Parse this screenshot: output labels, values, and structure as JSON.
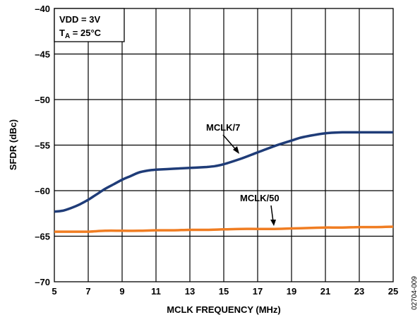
{
  "chart_data": {
    "type": "line",
    "title": "",
    "xlabel": "MCLK FREQUENCY (MHz)",
    "ylabel": "SFDR (dBc)",
    "xlim": [
      5,
      25
    ],
    "ylim": [
      -70,
      -40
    ],
    "xticks": [
      5,
      7,
      9,
      11,
      13,
      15,
      17,
      19,
      21,
      23,
      25
    ],
    "yticks": [
      -40,
      -45,
      -50,
      -55,
      -60,
      -65,
      -70
    ],
    "xtick_labels": [
      "5",
      "7",
      "9",
      "11",
      "13",
      "15",
      "17",
      "19",
      "21",
      "23",
      "25"
    ],
    "ytick_labels": [
      "–40",
      "–45",
      "–50",
      "–55",
      "–60",
      "–65",
      "–70"
    ],
    "grid": true,
    "conditions": {
      "line1": "VDD = 3V",
      "line2_prefix": "T",
      "line2_sub": "A",
      "line2_suffix": " = 25°C"
    },
    "series": [
      {
        "name": "MCLK/7",
        "color": "#1f3c78",
        "x": [
          5,
          5.5,
          6,
          6.5,
          7,
          7.5,
          8,
          8.5,
          9,
          9.5,
          10,
          10.5,
          11,
          12,
          13,
          14,
          14.5,
          15,
          16,
          17,
          18,
          19,
          19.5,
          20,
          21,
          22,
          23,
          24,
          25
        ],
        "y": [
          -62.3,
          -62.2,
          -61.9,
          -61.5,
          -61.0,
          -60.4,
          -59.8,
          -59.3,
          -58.8,
          -58.4,
          -58.0,
          -57.8,
          -57.7,
          -57.6,
          -57.5,
          -57.4,
          -57.3,
          -57.1,
          -56.5,
          -55.8,
          -55.1,
          -54.5,
          -54.2,
          -54.0,
          -53.7,
          -53.6,
          -53.6,
          -53.6,
          -53.6
        ],
        "label_point": [
          17.5,
          -55.5
        ]
      },
      {
        "name": "MCLK/50",
        "color": "#f07d22",
        "x": [
          5,
          6,
          7,
          8,
          9,
          10,
          11,
          12,
          13,
          14,
          15,
          16,
          17,
          18,
          19,
          20,
          21,
          22,
          23,
          24,
          25
        ],
        "y": [
          -64.5,
          -64.5,
          -64.5,
          -64.4,
          -64.4,
          -64.4,
          -64.35,
          -64.35,
          -64.3,
          -64.3,
          -64.25,
          -64.2,
          -64.2,
          -64.2,
          -64.15,
          -64.1,
          -64.05,
          -64.05,
          -64.0,
          -64.0,
          -63.95
        ],
        "label_point": [
          18.2,
          -64.2
        ]
      }
    ],
    "figure_id": "02704-009"
  }
}
